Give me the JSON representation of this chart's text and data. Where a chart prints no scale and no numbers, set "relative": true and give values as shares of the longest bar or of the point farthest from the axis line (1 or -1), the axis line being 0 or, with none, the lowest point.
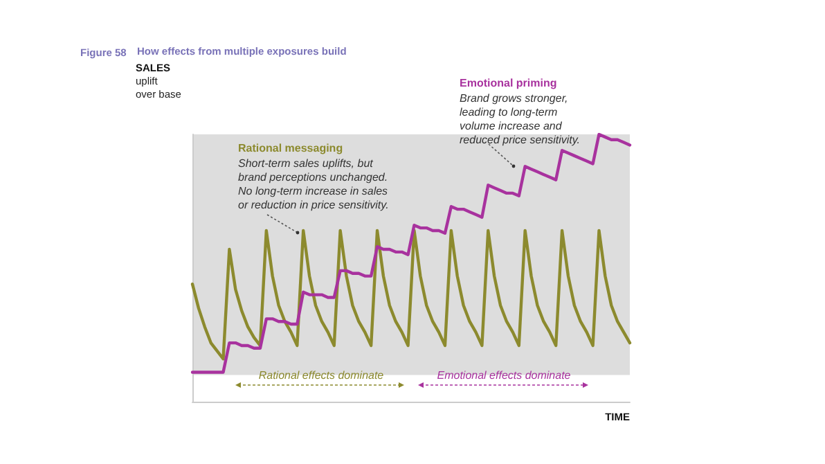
{
  "chart_data": {
    "type": "line",
    "title": "How effects from multiple exposures build",
    "ylabel": "SALES\nuplift\nover base",
    "xlabel": "TIME",
    "annotations": [
      "Figure 58",
      "Rational messaging",
      "Short-term sales uplifts, but\nbrand perceptions unchanged.\nNo long-term increase in sales\nor reduction in price sensitivity.",
      "Emotional priming",
      "Brand grows stronger,\nleading to long-term\nvolume increase and\nreduced price sensitivity.",
      "Rational effects dominate",
      "Emotional effects dominate"
    ],
    "relative": true,
    "grid": false,
    "marker": "none",
    "line_style": "solid",
    "categories": [
      null,
      null,
      null,
      null,
      null,
      null,
      null,
      null,
      null,
      null,
      null,
      null,
      null,
      null,
      null,
      null,
      null,
      null,
      null,
      null,
      null,
      null,
      null,
      null,
      null,
      null,
      null,
      null,
      null,
      null,
      null,
      null,
      null,
      null,
      null,
      null,
      null,
      null,
      null,
      null,
      null,
      null,
      null,
      null,
      null,
      null,
      null,
      null,
      null,
      null,
      null,
      null,
      null,
      null,
      null,
      null,
      null,
      null,
      null,
      null,
      null,
      null,
      null,
      null,
      null,
      null,
      null,
      null,
      null,
      null,
      null,
      null
    ],
    "bands": [
      {
        "axis": "y",
        "from": 0.1,
        "to": 1,
        "color": "#dddddd"
      }
    ],
    "series": [
      {
        "color": "#8c8a2e",
        "values": [
          0.44,
          0.35,
          0.28,
          0.22,
          0.19,
          0.16,
          0.57,
          0.42,
          0.34,
          0.28,
          0.24,
          0.21,
          0.64,
          0.47,
          0.36,
          0.3,
          0.26,
          0.21,
          0.64,
          0.47,
          0.36,
          0.3,
          0.26,
          0.21,
          0.64,
          0.47,
          0.36,
          0.3,
          0.26,
          0.21,
          0.64,
          0.47,
          0.36,
          0.3,
          0.26,
          0.21,
          0.64,
          0.47,
          0.36,
          0.3,
          0.26,
          0.21,
          0.64,
          0.47,
          0.36,
          0.3,
          0.26,
          0.21,
          0.64,
          0.47,
          0.36,
          0.3,
          0.26,
          0.21,
          0.64,
          0.47,
          0.36,
          0.3,
          0.26,
          0.21,
          0.64,
          0.47,
          0.36,
          0.3,
          0.26,
          0.21,
          0.64,
          0.47,
          0.36,
          0.3,
          0.26,
          0.22
        ]
      },
      {
        "color": "#a8329e",
        "values": [
          0.11,
          0.11,
          0.11,
          0.11,
          0.11,
          0.11,
          0.22,
          0.22,
          0.21,
          0.21,
          0.2,
          0.2,
          0.31,
          0.31,
          0.3,
          0.3,
          0.29,
          0.29,
          0.41,
          0.4,
          0.4,
          0.4,
          0.39,
          0.39,
          0.49,
          0.49,
          0.48,
          0.48,
          0.47,
          0.47,
          0.58,
          0.57,
          0.57,
          0.56,
          0.56,
          0.55,
          0.66,
          0.65,
          0.65,
          0.64,
          0.64,
          0.63,
          0.73,
          0.72,
          0.72,
          0.71,
          0.7,
          0.69,
          0.81,
          0.8,
          0.79,
          0.78,
          0.78,
          0.77,
          0.88,
          0.87,
          0.86,
          0.85,
          0.84,
          0.83,
          0.94,
          0.93,
          0.92,
          0.91,
          0.9,
          0.89,
          1,
          0.99,
          0.98,
          0.98,
          0.97,
          0.96
        ]
      }
    ]
  }
}
